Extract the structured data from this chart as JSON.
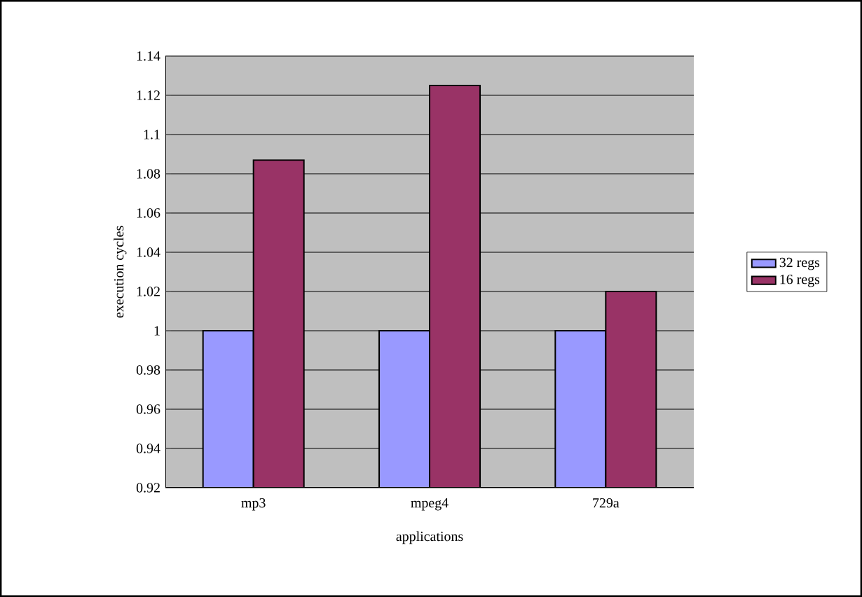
{
  "chart_data": {
    "type": "bar",
    "xlabel": "applications",
    "ylabel": "execution cycles",
    "categories": [
      "mp3",
      "mpeg4",
      "729a"
    ],
    "series": [
      {
        "name": "32 regs",
        "color": "#9999ff",
        "values": [
          1.0,
          1.0,
          1.0
        ]
      },
      {
        "name": "16 regs",
        "color": "#993366",
        "values": [
          1.087,
          1.125,
          1.02
        ]
      }
    ],
    "ylim": [
      0.92,
      1.14
    ],
    "yticks": [
      0.92,
      0.94,
      0.96,
      0.98,
      1,
      1.02,
      1.04,
      1.06,
      1.08,
      1.1,
      1.12,
      1.14
    ],
    "grid": "y",
    "legend": "right"
  }
}
